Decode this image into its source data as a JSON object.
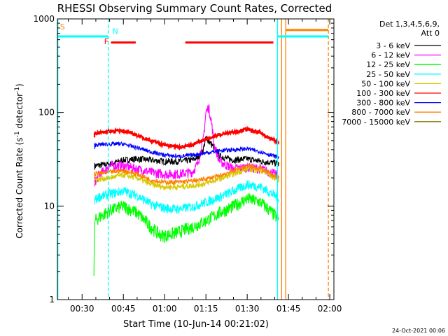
{
  "chart_data": {
    "type": "line",
    "title": "RHESSI Observing Summary Count Rates, Corrected",
    "xlabel": "Start Time (10-Jun-14 00:21:02)",
    "ylabel": "Corrected Count Rate (s",
    "ylabel_sup": "-1",
    "ylabel_tail": " detector",
    "ylabel_tail_sup": "-1",
    "ylabel_close": ")",
    "yscale": "log",
    "ylim": [
      1,
      1000
    ],
    "xlim_min": [
      21.03,
      121.5
    ],
    "x_ticks": [
      {
        "t": 30,
        "label": "00:30"
      },
      {
        "t": 45,
        "label": "00:45"
      },
      {
        "t": 60,
        "label": "01:00"
      },
      {
        "t": 75,
        "label": "01:15"
      },
      {
        "t": 90,
        "label": "01:30"
      },
      {
        "t": 105,
        "label": "01:45"
      },
      {
        "t": 120,
        "label": "02:00"
      }
    ],
    "y_ticks": [
      {
        "v": 1,
        "label": "1"
      },
      {
        "v": 10,
        "label": "10"
      },
      {
        "v": 100,
        "label": "100"
      },
      {
        "v": 1000,
        "label": "1000"
      }
    ],
    "legend": {
      "title_line1": "Det 1,3,4,5,6,9,",
      "title_line2": "Att 0",
      "position": "right",
      "entries": [
        {
          "label": "3 - 6 keV",
          "color": "#000000"
        },
        {
          "label": "6 - 12 keV",
          "color": "#ff00ff"
        },
        {
          "label": "12 - 25 keV",
          "color": "#00ff00"
        },
        {
          "label": "25 - 50 keV",
          "color": "#00ffff"
        },
        {
          "label": "50 - 100 keV",
          "color": "#d8c800"
        },
        {
          "label": "100 - 300 keV",
          "color": "#ff0000"
        },
        {
          "label": "300 - 800 keV",
          "color": "#0000ff"
        },
        {
          "label": "800 - 7000 keV",
          "color": "#ff8000"
        },
        {
          "label": "7000 - 15000 keV",
          "color": "#808000"
        }
      ]
    },
    "series": [
      {
        "name": "3 - 6 keV",
        "color": "#000000",
        "x": [
          34.5,
          40,
          45,
          50,
          55,
          60,
          65,
          70,
          72,
          74,
          75,
          76,
          78,
          80,
          85,
          90,
          95,
          100,
          101.5
        ],
        "y": [
          27,
          28,
          31,
          32,
          31,
          30,
          30,
          31,
          33,
          40,
          54,
          50,
          42,
          34,
          31,
          32,
          30,
          29,
          28
        ]
      },
      {
        "name": "6 - 12 keV",
        "color": "#ff00ff",
        "x": [
          34.5,
          36,
          38,
          40,
          45,
          50,
          55,
          60,
          65,
          70,
          72,
          74,
          75,
          76,
          77,
          78,
          80,
          85,
          90,
          95,
          100,
          101.5
        ],
        "y": [
          18,
          21,
          24,
          27,
          27,
          25,
          23,
          22,
          22,
          23,
          28,
          50,
          100,
          115,
          80,
          45,
          30,
          25,
          26,
          25,
          22,
          21
        ]
      },
      {
        "name": "12 - 25 keV",
        "color": "#00ff00",
        "x": [
          34.3,
          34.6,
          36,
          40,
          45,
          50,
          55,
          58,
          60,
          62,
          65,
          70,
          75,
          80,
          85,
          90,
          95,
          100,
          101.5
        ],
        "y": [
          2,
          7,
          7.5,
          9,
          10,
          8.5,
          6,
          5,
          4.8,
          5,
          5.3,
          6,
          7,
          8.5,
          10,
          12,
          11,
          8,
          7
        ]
      },
      {
        "name": "25 - 50 keV",
        "color": "#00ffff",
        "x": [
          34.5,
          36,
          40,
          45,
          50,
          55,
          60,
          65,
          70,
          75,
          80,
          85,
          90,
          95,
          100,
          101.5
        ],
        "y": [
          11.5,
          12.5,
          13.5,
          14.5,
          13,
          10.5,
          9.5,
          9.3,
          9.8,
          11,
          12.5,
          14.5,
          17,
          16,
          13,
          12
        ]
      },
      {
        "name": "50 - 100 keV",
        "color": "#d8c800",
        "x": [
          34.5,
          40,
          45,
          50,
          55,
          60,
          65,
          70,
          75,
          80,
          85,
          90,
          95,
          100,
          101.5
        ],
        "y": [
          19,
          20,
          21.5,
          20,
          17,
          16,
          16,
          16.5,
          17.5,
          19.5,
          22,
          25,
          24,
          20,
          19
        ]
      },
      {
        "name": "100 - 300 keV",
        "color": "#ff0000",
        "x": [
          34.5,
          40,
          45,
          50,
          55,
          60,
          65,
          70,
          75,
          80,
          85,
          90,
          95,
          100,
          101.5
        ],
        "y": [
          60,
          63,
          64,
          57,
          50,
          45,
          43,
          45,
          52,
          58,
          62,
          66,
          60,
          50,
          46
        ]
      },
      {
        "name": "300 - 800 keV",
        "color": "#0000ff",
        "x": [
          34.5,
          40,
          45,
          50,
          55,
          60,
          65,
          70,
          75,
          80,
          85,
          90,
          95,
          100,
          101.5
        ],
        "y": [
          45,
          46,
          46,
          42,
          38,
          35,
          34,
          35,
          37,
          39,
          40,
          41,
          38,
          34,
          33
        ]
      },
      {
        "name": "800 - 7000 keV",
        "color": "#ff8000",
        "x": [
          34.5,
          40,
          45,
          50,
          55,
          60,
          65,
          70,
          75,
          80,
          85,
          90,
          95,
          100,
          101.5
        ],
        "y": [
          22,
          23,
          24,
          22,
          19,
          18,
          18,
          18.5,
          19.5,
          21,
          24,
          27,
          25,
          21,
          20
        ]
      }
    ],
    "markers": {
      "vlines": [
        {
          "t": 21.2,
          "color": "#00ffff",
          "style": "solid"
        },
        {
          "t": 39.5,
          "color": "#00ffff",
          "style": "dashed"
        },
        {
          "t": 101.0,
          "color": "#00ffff",
          "style": "solid"
        },
        {
          "t": 102.5,
          "color": "#ff8000",
          "style": "solid"
        },
        {
          "t": 104.0,
          "color": "#ff8000",
          "style": "solid"
        },
        {
          "t": 119.5,
          "color": "#ff8000",
          "style": "dashed"
        }
      ],
      "bars": [
        {
          "t0": 21.2,
          "t1": 39.5,
          "value": 650,
          "color": "#00ffff"
        },
        {
          "t0": 40.5,
          "t1": 49.5,
          "value": 560,
          "color": "#ff0000"
        },
        {
          "t0": 67.5,
          "t1": 99.5,
          "value": 560,
          "color": "#ff0000"
        },
        {
          "t0": 101.0,
          "t1": 119.5,
          "value": 650,
          "color": "#00ffff"
        },
        {
          "t0": 104.0,
          "t1": 119.5,
          "value": 760,
          "color": "#ff8000"
        }
      ],
      "labels": [
        {
          "text": "S",
          "t": 22,
          "value": 770,
          "color": "#ff8000"
        },
        {
          "text": "N",
          "t": 41,
          "value": 690,
          "color": "#00ffff"
        },
        {
          "text": "F",
          "t": 38,
          "value": 540,
          "color": "#ff0000"
        }
      ]
    }
  },
  "footer_date": "24-Oct-2021 00:06"
}
